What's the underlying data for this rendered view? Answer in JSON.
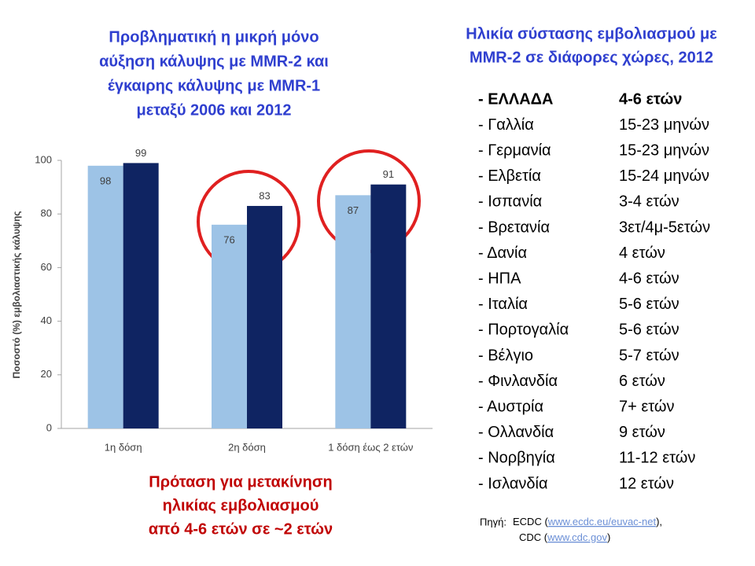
{
  "chart_data": {
    "type": "bar",
    "title": [
      "Προβληματική η μικρή μόνο",
      "αύξηση κάλυψης με MMR-2 και",
      "έγκαιρης κάλυψης με MMR-1",
      "μεταξύ 2006 και 2012"
    ],
    "y_label": "Ποσοστό (%) εμβολιαστικής κάλυψης",
    "categories": [
      "1η δόση",
      "2η δόση",
      "1 δόση έως 2 ετών"
    ],
    "series": [
      {
        "color": "#9dc3e6",
        "values": [
          98,
          76,
          87
        ]
      },
      {
        "color": "#0f2462",
        "values": [
          99,
          83,
          91
        ]
      }
    ],
    "ylim": [
      0,
      100
    ],
    "yticks": [
      0,
      20,
      40,
      60,
      80,
      100
    ],
    "grid": false
  },
  "note": [
    "Πρόταση για μετακίνηση",
    "ηλικίας εμβολιασμού",
    "από 4-6 ετών σε ~2 ετών"
  ],
  "table": {
    "title": [
      "Ηλικία σύστασης εμβολιασμού με",
      "MMR-2 σε διάφορες χώρες, 2012"
    ],
    "rows": [
      [
        "- ΕΛΛΑΔΑ",
        "4-6 ετών"
      ],
      [
        "- Γαλλία",
        "15-23 μηνών"
      ],
      [
        "- Γερμανία",
        "15-23 μηνών"
      ],
      [
        "- Ελβετία",
        "15-24 μηνών"
      ],
      [
        "- Ισπανία",
        "3-4 ετών"
      ],
      [
        "- Βρετανία",
        "3ετ/4μ-5ετών"
      ],
      [
        "- Δανία",
        "4 ετών"
      ],
      [
        "- ΗΠΑ",
        "4-6 ετών"
      ],
      [
        "- Ιταλία",
        "5-6 ετών"
      ],
      [
        "- Πορτογαλία",
        "5-6 ετών"
      ],
      [
        "- Βέλγιο",
        "5-7 ετών"
      ],
      [
        "- Φινλανδία",
        "6 ετών"
      ],
      [
        "- Αυστρία",
        "7+ ετών"
      ],
      [
        "- Ολλανδία",
        "9 ετών"
      ],
      [
        "- Νορβηγία",
        "11-12 ετών"
      ],
      [
        "- Ισλανδία",
        "12 ετών"
      ]
    ]
  },
  "source": {
    "label": "Πηγή:",
    "lines": [
      [
        "ECDC (",
        "www.ecdc.eu/euvac-net",
        "),"
      ],
      [
        "CDC (",
        "www.cdc.gov",
        ")"
      ]
    ]
  }
}
